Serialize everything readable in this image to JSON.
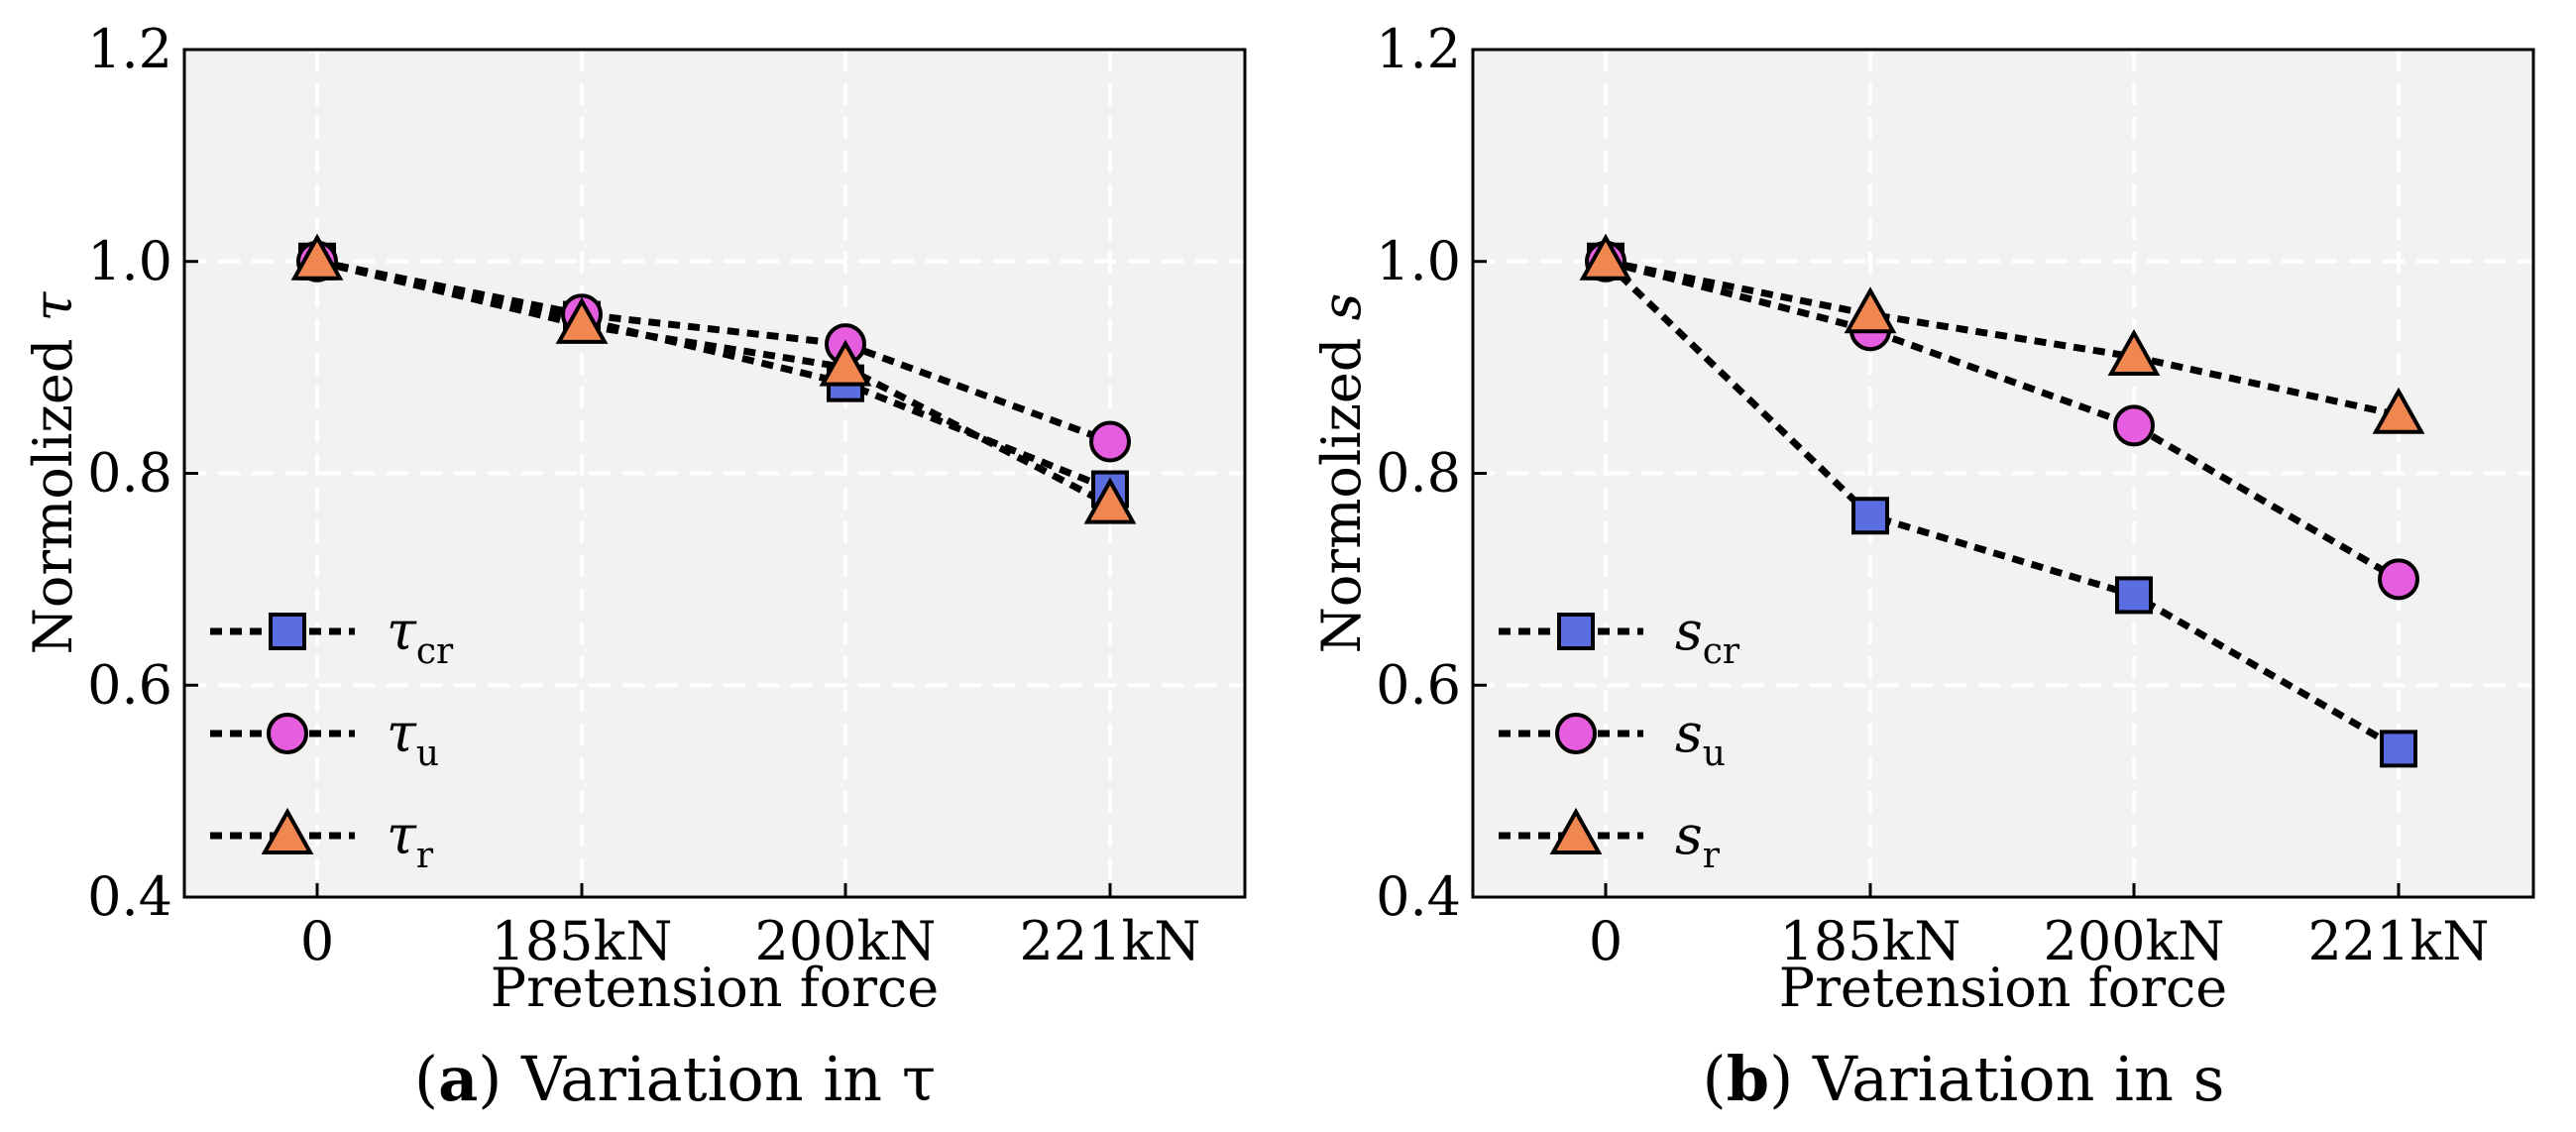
{
  "chart_data": [
    {
      "type": "line",
      "panel_letter": "a",
      "caption": "Variation in τ",
      "xlabel": "Pretension force",
      "ylabel": "Normolized ",
      "ylabel_symbol": "τ",
      "categories": [
        "0",
        "185kN",
        "200kN",
        "221kN"
      ],
      "ylim": [
        0.4,
        1.2
      ],
      "yticks": [
        "0.4",
        "0.6",
        "0.8",
        "1.0",
        "1.2"
      ],
      "grid": true,
      "legend_position": "lower-left",
      "series": [
        {
          "name": "τ",
          "sub": "cr",
          "marker": "square",
          "color": "#5b6ee1",
          "values": [
            1.0,
            0.945,
            0.885,
            0.785
          ]
        },
        {
          "name": "τ",
          "sub": "u",
          "marker": "circle",
          "color": "#e65de0",
          "values": [
            1.0,
            0.95,
            0.922,
            0.83
          ]
        },
        {
          "name": "τ",
          "sub": "r",
          "marker": "triangle",
          "color": "#f08650",
          "values": [
            1.0,
            0.94,
            0.9,
            0.77
          ]
        }
      ]
    },
    {
      "type": "line",
      "panel_letter": "b",
      "caption": "Variation in s",
      "xlabel": "Pretension force",
      "ylabel": "Normolized ",
      "ylabel_symbol": "s",
      "categories": [
        "0",
        "185kN",
        "200kN",
        "221kN"
      ],
      "ylim": [
        0.4,
        1.2
      ],
      "yticks": [
        "0.4",
        "0.6",
        "0.8",
        "1.0",
        "1.2"
      ],
      "grid": true,
      "legend_position": "lower-left",
      "series": [
        {
          "name": "s",
          "sub": "cr",
          "marker": "square",
          "color": "#5b6ee1",
          "values": [
            1.0,
            0.76,
            0.685,
            0.54
          ]
        },
        {
          "name": "s",
          "sub": "u",
          "marker": "circle",
          "color": "#e65de0",
          "values": [
            1.0,
            0.935,
            0.845,
            0.7
          ]
        },
        {
          "name": "s",
          "sub": "r",
          "marker": "triangle",
          "color": "#f08650",
          "values": [
            1.0,
            0.95,
            0.91,
            0.855
          ]
        }
      ]
    }
  ]
}
